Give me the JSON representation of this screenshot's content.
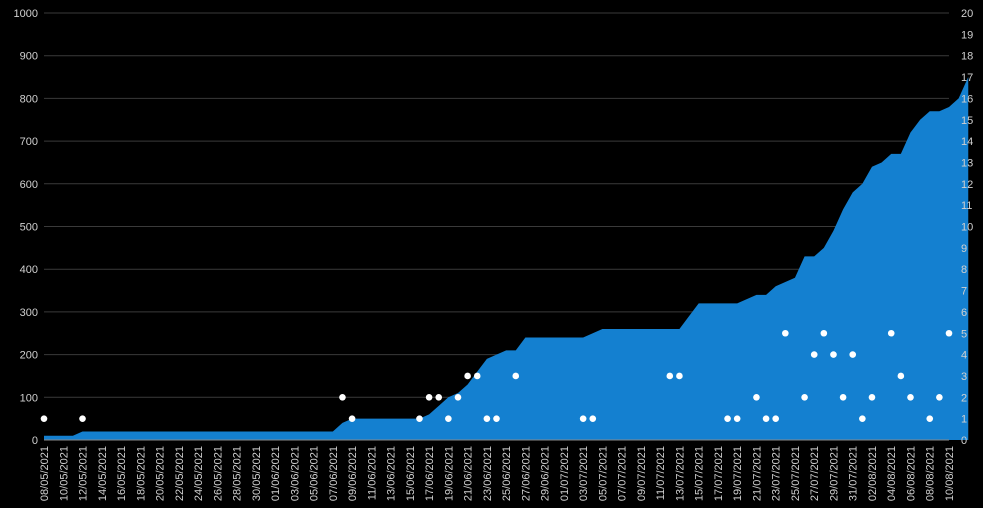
{
  "chart_data": {
    "type": "area",
    "title": "",
    "xlabel": "",
    "ylabel": "",
    "ylim": [
      0,
      1000
    ],
    "y2lim": [
      0,
      20
    ],
    "grid": true,
    "legend": "none",
    "colors": {
      "background": "#000000",
      "area": "#1480d0",
      "points": "#ffffff",
      "grid": "#3a3a3a",
      "text": "#d0d0d0"
    },
    "x_start": "08/05/2021",
    "x_end": "10/08/2021",
    "x_tick_labels": [
      "08/05/2021",
      "10/05/2021",
      "12/05/2021",
      "14/05/2021",
      "16/05/2021",
      "18/05/2021",
      "20/05/2021",
      "22/05/2021",
      "24/05/2021",
      "26/05/2021",
      "28/05/2021",
      "30/05/2021",
      "01/06/2021",
      "03/06/2021",
      "05/06/2021",
      "07/06/2021",
      "09/06/2021",
      "11/06/2021",
      "13/06/2021",
      "15/06/2021",
      "17/06/2021",
      "19/06/2021",
      "21/06/2021",
      "23/06/2021",
      "25/06/2021",
      "27/06/2021",
      "29/06/2021",
      "01/07/2021",
      "03/07/2021",
      "05/07/2021",
      "07/07/2021",
      "09/07/2021",
      "11/07/2021",
      "13/07/2021",
      "15/07/2021",
      "17/07/2021",
      "19/07/2021",
      "21/07/2021",
      "23/07/2021",
      "25/07/2021",
      "27/07/2021",
      "29/07/2021",
      "31/07/2021",
      "02/08/2021",
      "04/08/2021",
      "06/08/2021",
      "08/08/2021",
      "10/08/2021"
    ],
    "y_ticks": [
      0,
      100,
      200,
      300,
      400,
      500,
      600,
      700,
      800,
      900,
      1000
    ],
    "y2_ticks": [
      0,
      1,
      2,
      3,
      4,
      5,
      6,
      7,
      8,
      9,
      10,
      11,
      12,
      13,
      14,
      15,
      16,
      17,
      18,
      19,
      20
    ],
    "series": [
      {
        "axis": "left",
        "kind": "area",
        "values": [
          10,
          10,
          10,
          10,
          20,
          20,
          20,
          20,
          20,
          20,
          20,
          20,
          20,
          20,
          20,
          20,
          20,
          20,
          20,
          20,
          20,
          20,
          20,
          20,
          20,
          20,
          20,
          20,
          20,
          20,
          20,
          40,
          50,
          50,
          50,
          50,
          50,
          50,
          50,
          50,
          60,
          80,
          100,
          110,
          130,
          160,
          190,
          200,
          210,
          210,
          240,
          240,
          240,
          240,
          240,
          240,
          240,
          250,
          260,
          260,
          260,
          260,
          260,
          260,
          260,
          260,
          260,
          290,
          320,
          320,
          320,
          320,
          320,
          330,
          340,
          340,
          360,
          370,
          380,
          430,
          430,
          450,
          490,
          540,
          580,
          600,
          640,
          650,
          670,
          670,
          720,
          750,
          770,
          770,
          780,
          800,
          850
        ]
      },
      {
        "axis": "right",
        "kind": "scatter",
        "points": [
          {
            "x": "08/05/2021",
            "y": 1
          },
          {
            "x": "12/05/2021",
            "y": 1
          },
          {
            "x": "08/06/2021",
            "y": 2
          },
          {
            "x": "09/06/2021",
            "y": 1
          },
          {
            "x": "16/06/2021",
            "y": 1
          },
          {
            "x": "17/06/2021",
            "y": 2
          },
          {
            "x": "18/06/2021",
            "y": 2
          },
          {
            "x": "19/06/2021",
            "y": 1
          },
          {
            "x": "20/06/2021",
            "y": 2
          },
          {
            "x": "21/06/2021",
            "y": 3
          },
          {
            "x": "22/06/2021",
            "y": 3
          },
          {
            "x": "23/06/2021",
            "y": 1
          },
          {
            "x": "24/06/2021",
            "y": 1
          },
          {
            "x": "26/06/2021",
            "y": 3
          },
          {
            "x": "03/07/2021",
            "y": 1
          },
          {
            "x": "04/07/2021",
            "y": 1
          },
          {
            "x": "12/07/2021",
            "y": 3
          },
          {
            "x": "13/07/2021",
            "y": 3
          },
          {
            "x": "18/07/2021",
            "y": 1
          },
          {
            "x": "19/07/2021",
            "y": 1
          },
          {
            "x": "21/07/2021",
            "y": 2
          },
          {
            "x": "22/07/2021",
            "y": 1
          },
          {
            "x": "23/07/2021",
            "y": 1
          },
          {
            "x": "24/07/2021",
            "y": 5
          },
          {
            "x": "26/07/2021",
            "y": 2
          },
          {
            "x": "27/07/2021",
            "y": 4
          },
          {
            "x": "28/07/2021",
            "y": 5
          },
          {
            "x": "29/07/2021",
            "y": 4
          },
          {
            "x": "30/07/2021",
            "y": 2
          },
          {
            "x": "31/07/2021",
            "y": 4
          },
          {
            "x": "01/08/2021",
            "y": 1
          },
          {
            "x": "02/08/2021",
            "y": 2
          },
          {
            "x": "04/08/2021",
            "y": 5
          },
          {
            "x": "05/08/2021",
            "y": 3
          },
          {
            "x": "06/08/2021",
            "y": 2
          },
          {
            "x": "08/08/2021",
            "y": 1
          },
          {
            "x": "09/08/2021",
            "y": 2
          },
          {
            "x": "10/08/2021",
            "y": 5
          }
        ]
      }
    ]
  }
}
